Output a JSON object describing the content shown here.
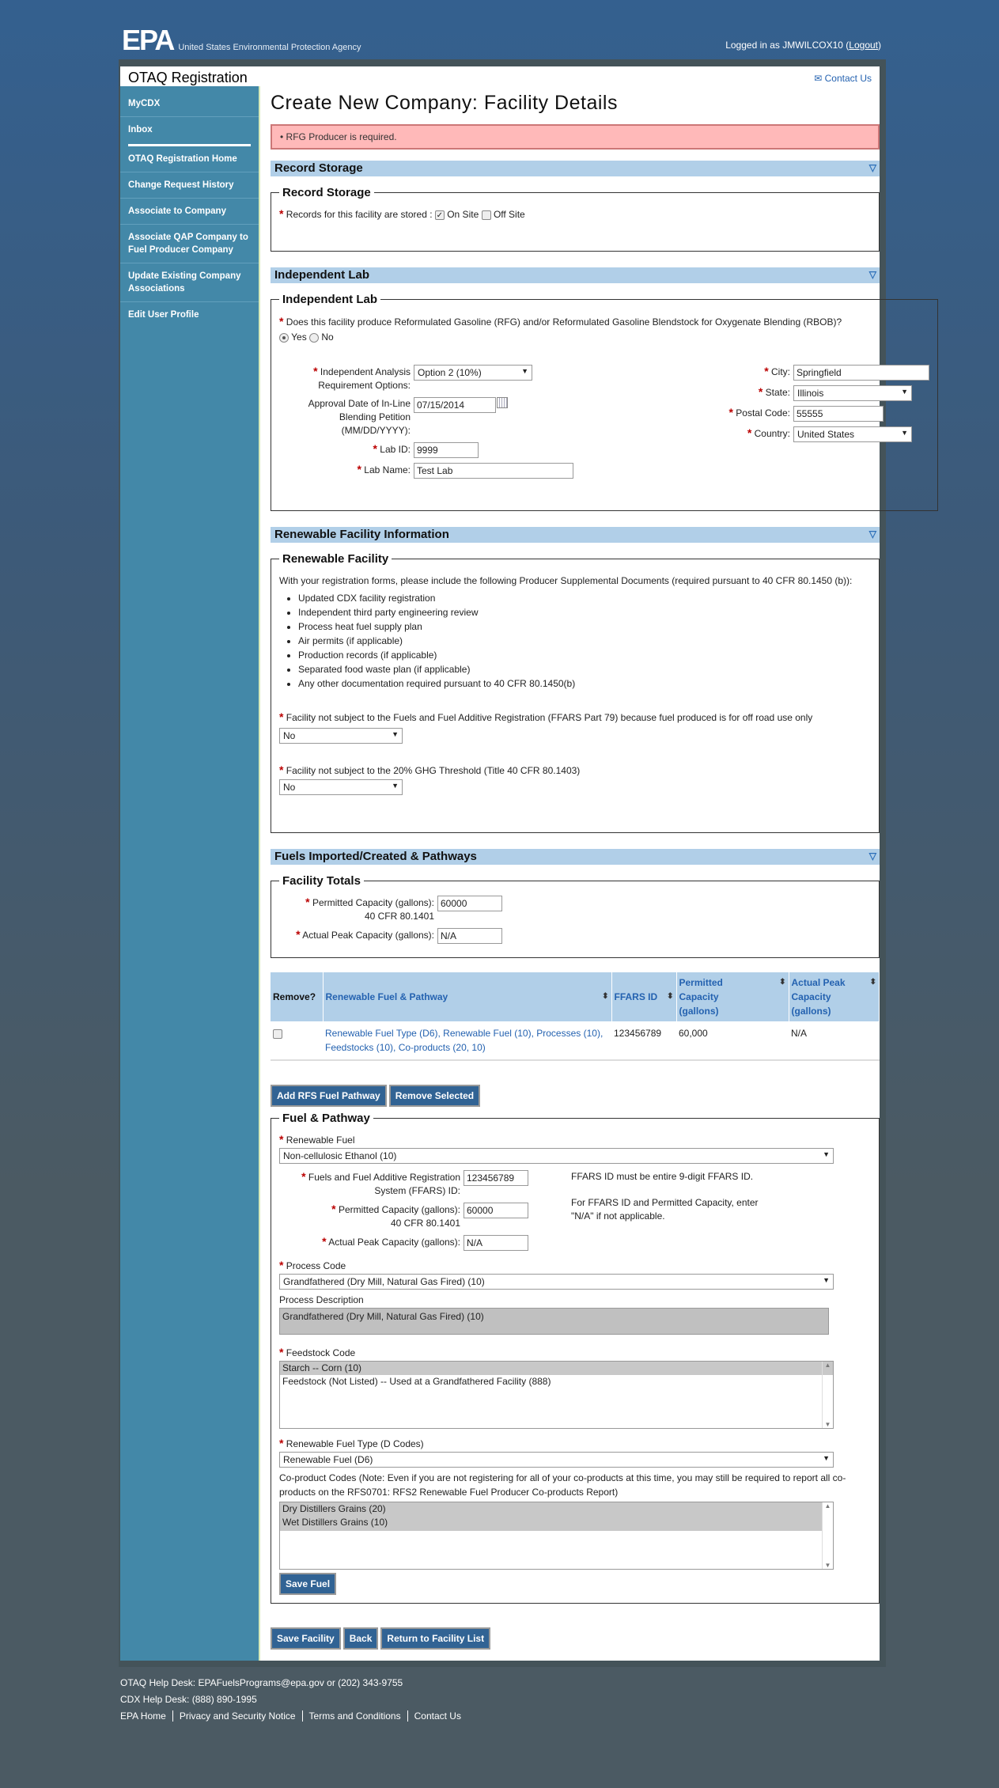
{
  "header": {
    "logo": "EPA",
    "agency": "United States Environmental Protection Agency",
    "logged_in": "Logged in as JMWILCOX10",
    "logout": "Logout"
  },
  "app": {
    "title": "OTAQ Registration",
    "contact": "Contact Us"
  },
  "sidebar": {
    "items": [
      {
        "label": "MyCDX"
      },
      {
        "label": "Inbox"
      },
      {
        "label": "OTAQ Registration Home"
      },
      {
        "label": "Change Request History"
      },
      {
        "label": "Associate to Company"
      },
      {
        "label": "Associate QAP Company to Fuel Producer Company"
      },
      {
        "label": "Update Existing Company Associations"
      },
      {
        "label": "Edit User Profile"
      }
    ]
  },
  "page": {
    "title": "Create New Company: Facility Details",
    "error": "RFG Producer is required."
  },
  "record_storage": {
    "header": "Record Storage",
    "legend": "Record Storage",
    "label": "Records for this facility are stored :",
    "on_site": "On Site",
    "off_site": "Off Site",
    "on_site_checked": true,
    "off_site_checked": false
  },
  "independent_lab": {
    "header": "Independent Lab",
    "legend": "Independent Lab",
    "question": "Does this facility produce Reformulated Gasoline (RFG) and/or Reformulated Gasoline Blendstock for Oxygenate Blending (RBOB)?",
    "yes": "Yes",
    "no": "No",
    "selected": "Yes",
    "analysis_label": "Independent Analysis Requirement Options:",
    "analysis_value": "Option 2 (10%)",
    "approval_label": "Approval Date of In-Line Blending Petition (MM/DD/YYYY):",
    "approval_value": "07/15/2014",
    "lab_id_label": "Lab ID:",
    "lab_id": "9999",
    "lab_name_label": "Lab Name:",
    "lab_name": "Test Lab",
    "city_label": "City:",
    "city": "Springfield",
    "state_label": "State:",
    "state": "Illinois",
    "postal_label": "Postal Code:",
    "postal": "55555",
    "country_label": "Country:",
    "country": "United States"
  },
  "renewable": {
    "header": "Renewable Facility Information",
    "legend": "Renewable Facility",
    "intro": "With your registration forms, please include the following Producer Supplemental Documents (required pursuant to 40 CFR 80.1450 (b)):",
    "docs": [
      "Updated CDX facility registration",
      "Independent third party engineering review",
      "Process heat fuel supply plan",
      "Air permits (if applicable)",
      "Production records (if applicable)",
      "Separated food waste plan (if applicable)",
      "Any other documentation required pursuant to 40 CFR 80.1450(b)"
    ],
    "ffars_q": "Facility not subject to the Fuels and Fuel Additive Registration (FFARS Part 79) because fuel produced is for off road use only",
    "ffars_value": "No",
    "ghg_q": "Facility not subject to the 20% GHG Threshold (Title 40 CFR 80.1403)",
    "ghg_value": "No"
  },
  "fuels": {
    "header": "Fuels Imported/Created & Pathways",
    "totals_legend": "Facility Totals",
    "permitted_label": "Permitted Capacity (gallons):",
    "permitted_sub": "40 CFR 80.1401",
    "permitted": "60000",
    "peak_label": "Actual Peak Capacity (gallons):",
    "peak": "N/A",
    "table": {
      "headers": [
        "Remove?",
        "Renewable Fuel & Pathway",
        "FFARS ID",
        "Permitted Capacity (gallons)",
        "Actual Peak Capacity (gallons)"
      ],
      "rows": [
        {
          "pathway": "Renewable Fuel Type (D6), Renewable Fuel (10), Processes (10), Feedstocks (10), Co-products (20, 10)",
          "ffars": "123456789",
          "permitted": "60,000",
          "peak": "N/A"
        }
      ]
    },
    "add_btn": "Add RFS Fuel Pathway",
    "remove_btn": "Remove Selected"
  },
  "pathway": {
    "legend": "Fuel & Pathway",
    "fuel_label": "Renewable Fuel",
    "fuel": "Non-cellulosic Ethanol (10)",
    "ffars_label": "Fuels and Fuel Additive Registration System (FFARS) ID:",
    "ffars": "123456789",
    "note1": "FFARS ID must be entire 9-digit FFARS ID.",
    "note2": "For FFARS ID and Permitted Capacity, enter \"N/A\" if not applicable.",
    "permitted_label": "Permitted Capacity (gallons):",
    "permitted_sub": "40 CFR 80.1401",
    "permitted": "60000",
    "peak_label": "Actual Peak Capacity (gallons):",
    "peak": "N/A",
    "process_label": "Process Code",
    "process": "Grandfathered (Dry Mill, Natural Gas Fired) (10)",
    "desc_label": "Process Description",
    "desc": "Grandfathered (Dry Mill, Natural Gas Fired) (10)",
    "feedstock_label": "Feedstock Code",
    "feedstocks": [
      "Starch -- Corn (10)",
      "Feedstock (Not Listed) -- Used at a Grandfathered Facility (888)"
    ],
    "dcode_label": "Renewable Fuel Type (D Codes)",
    "dcode": "Renewable Fuel (D6)",
    "coproduct_label": "Co-product Codes (Note: Even if you are not registering for all of your co-products at this time, you may still be required to report all co-products on the RFS0701: RFS2 Renewable Fuel Producer Co-products Report)",
    "coproducts": [
      "Dry Distillers Grains (20)",
      "Wet Distillers Grains (10)"
    ],
    "save_fuel": "Save Fuel"
  },
  "actions": {
    "save": "Save Facility",
    "back": "Back",
    "return": "Return to Facility List"
  },
  "footer": {
    "otaq": "OTAQ Help Desk: EPAFuelsPrograms@epa.gov or (202) 343-9755",
    "cdx": "CDX Help Desk: (888) 890-1995",
    "links": [
      "EPA Home",
      "Privacy and Security Notice",
      "Terms and Conditions",
      "Contact Us"
    ]
  }
}
